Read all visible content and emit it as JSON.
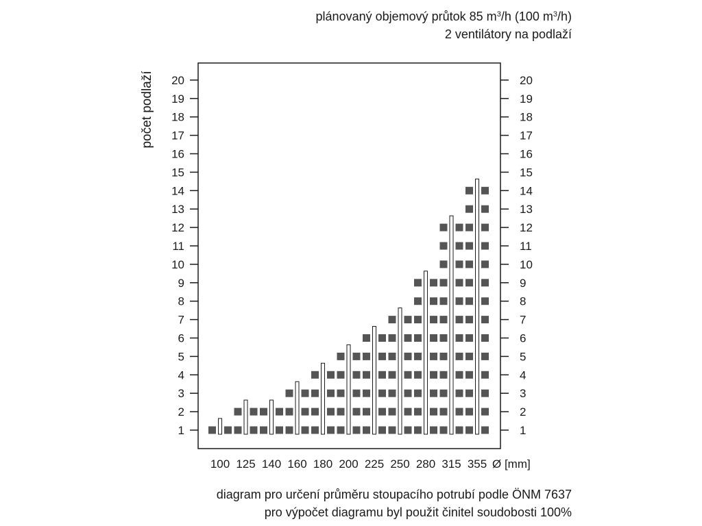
{
  "header": {
    "line1_text": "plánovaný objemový průtok 85 m",
    "line1_sup1": "3",
    "line1_mid": "/h (100 m",
    "line1_sup2": "3",
    "line1_end": "/h)",
    "line2": "2 ventilátory na podlaží"
  },
  "caption": {
    "line1": "diagram pro určení průměru stoupacího potrubí podle ÖNM 7637",
    "line2": "pro výpočet diagramu byl použit činitel soudobosti 100%"
  },
  "chart_data": {
    "type": "bar",
    "ylabel": "počet podlaží",
    "xlabel": "Ø [mm]",
    "categories": [
      "100",
      "125",
      "140",
      "160",
      "180",
      "200",
      "225",
      "250",
      "280",
      "315",
      "355"
    ],
    "values": [
      1,
      2,
      2,
      3,
      4,
      5,
      6,
      7,
      9,
      12,
      14
    ],
    "ylim": [
      0,
      21
    ],
    "yticks": [
      1,
      2,
      3,
      4,
      5,
      6,
      7,
      8,
      9,
      10,
      11,
      12,
      13,
      14,
      15,
      16,
      17,
      18,
      19,
      20
    ],
    "ticks_both_sides": true,
    "grid": false,
    "colors": {
      "square": "#555555",
      "stroke": "#1a1a1a",
      "pipe": "#ffffff"
    }
  }
}
